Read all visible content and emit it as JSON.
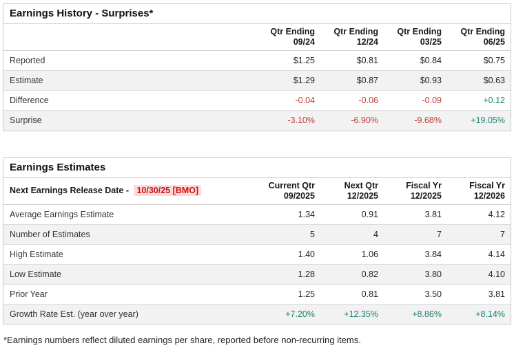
{
  "colors": {
    "negative": "#c23b35",
    "positive": "#1b8170",
    "release_date_text": "#cc1111",
    "release_date_bg": "#fbdbdb",
    "row_shade": "#f2f2f2"
  },
  "earnings_history": {
    "title": "Earnings History - Surprises*",
    "columns": [
      {
        "line1": "Qtr Ending",
        "line2": "09/24"
      },
      {
        "line1": "Qtr Ending",
        "line2": "12/24"
      },
      {
        "line1": "Qtr Ending",
        "line2": "03/25"
      },
      {
        "line1": "Qtr Ending",
        "line2": "06/25"
      }
    ],
    "rows": [
      {
        "label": "Reported",
        "values": [
          "$1.25",
          "$0.81",
          "$0.84",
          "$0.75"
        ]
      },
      {
        "label": "Estimate",
        "values": [
          "$1.29",
          "$0.87",
          "$0.93",
          "$0.63"
        ]
      },
      {
        "label": "Difference",
        "values": [
          "-0.04",
          "-0.06",
          "-0.09",
          "+0.12"
        ],
        "values_class": [
          "neg",
          "neg",
          "neg",
          "pos"
        ]
      },
      {
        "label": "Surprise",
        "values": [
          "-3.10%",
          "-6.90%",
          "-9.68%",
          "+19.05%"
        ],
        "values_class": [
          "neg",
          "neg",
          "neg",
          "pos"
        ]
      }
    ]
  },
  "earnings_estimates": {
    "title": "Earnings Estimates",
    "release_date_label": "Next Earnings Release Date - ",
    "release_date_value": "10/30/25 [BMO]",
    "columns": [
      {
        "line1": "Current Qtr",
        "line2": "09/2025"
      },
      {
        "line1": "Next Qtr",
        "line2": "12/2025"
      },
      {
        "line1": "Fiscal Yr",
        "line2": "12/2025"
      },
      {
        "line1": "Fiscal Yr",
        "line2": "12/2026"
      }
    ],
    "rows": [
      {
        "label": "Average Earnings Estimate",
        "values": [
          "1.34",
          "0.91",
          "3.81",
          "4.12"
        ]
      },
      {
        "label": "Number of Estimates",
        "values": [
          "5",
          "4",
          "7",
          "7"
        ]
      },
      {
        "label": "High Estimate",
        "values": [
          "1.40",
          "1.06",
          "3.84",
          "4.14"
        ]
      },
      {
        "label": "Low Estimate",
        "values": [
          "1.28",
          "0.82",
          "3.80",
          "4.10"
        ]
      },
      {
        "label": "Prior Year",
        "values": [
          "1.25",
          "0.81",
          "3.50",
          "3.81"
        ]
      },
      {
        "label": "Growth Rate Est. (year over year)",
        "values": [
          "+7.20%",
          "+12.35%",
          "+8.86%",
          "+8.14%"
        ],
        "values_class": [
          "pos",
          "pos",
          "pos",
          "pos"
        ]
      }
    ]
  },
  "footnote": "*Earnings numbers reflect diluted earnings per share, reported before non-recurring items."
}
